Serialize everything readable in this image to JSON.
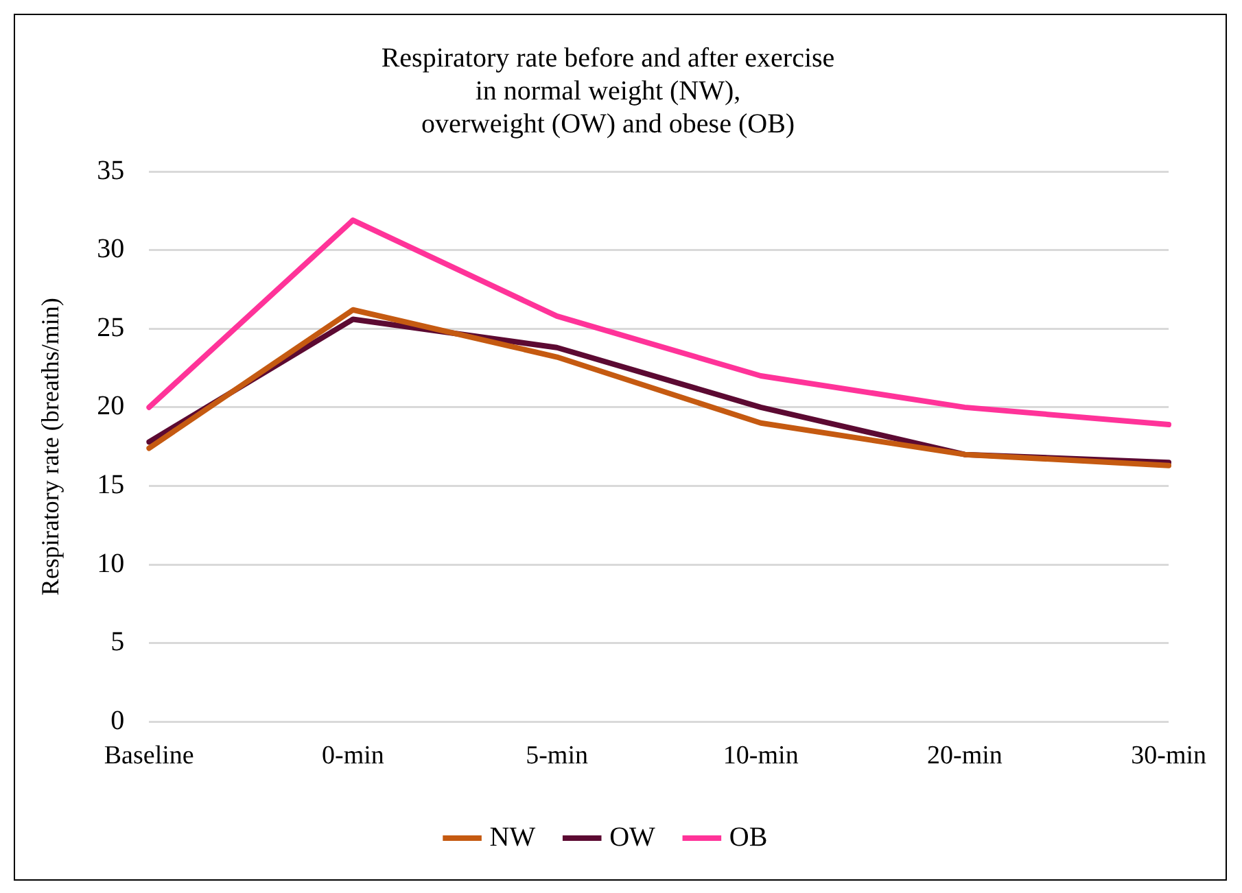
{
  "chart_data": {
    "type": "line",
    "title": [
      "Respiratory rate before and after exercise",
      "in normal weight (NW),",
      "overweight (OW) and obese (OB)"
    ],
    "ylabel": "Respiratory rate (breaths/min)",
    "categories": [
      "Baseline",
      "0-min",
      "5-min",
      "10-min",
      "20-min",
      "30-min"
    ],
    "series": [
      {
        "name": "NW",
        "color": "#c55a11",
        "values": [
          17.4,
          26.2,
          23.2,
          19.0,
          17.0,
          16.3
        ]
      },
      {
        "name": "OW",
        "color": "#5c0a32",
        "values": [
          17.8,
          25.6,
          23.8,
          20.0,
          17.0,
          16.5
        ]
      },
      {
        "name": "OB",
        "color": "#ff3399",
        "values": [
          20.0,
          31.9,
          25.8,
          22.0,
          20.0,
          18.9
        ]
      }
    ],
    "ylim": [
      0,
      35
    ],
    "yticks": [
      0,
      5,
      10,
      15,
      20,
      25,
      30,
      35
    ],
    "grid": "y",
    "legend": "bottom",
    "marker": "none",
    "line_style": "solid"
  }
}
